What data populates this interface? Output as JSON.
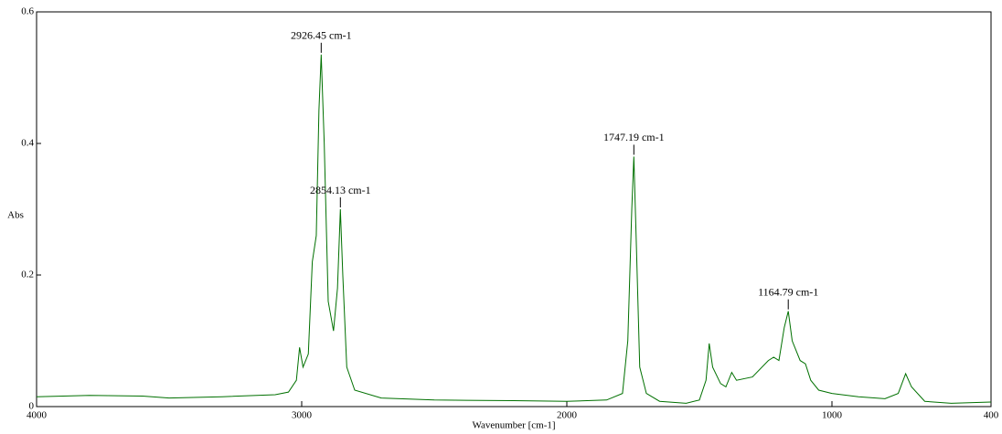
{
  "chart_data": {
    "type": "line",
    "x_label": "Wavenumber [cm-1]",
    "y_label": "Abs",
    "xlim": [
      4000,
      400
    ],
    "ylim": [
      0,
      0.6
    ],
    "xticks": [
      4000,
      3000,
      2000,
      1000,
      400
    ],
    "yticks": [
      0,
      0.2,
      0.4,
      0.6
    ],
    "x": [
      4000,
      3800,
      3600,
      3500,
      3300,
      3100,
      3050,
      3020,
      3008,
      2995,
      2975,
      2960,
      2945,
      2935,
      2926.45,
      2915,
      2900,
      2880,
      2865,
      2854.13,
      2845,
      2830,
      2800,
      2700,
      2500,
      2200,
      2000,
      1850,
      1790,
      1770,
      1755,
      1747.19,
      1738,
      1725,
      1700,
      1650,
      1550,
      1500,
      1475,
      1463,
      1450,
      1420,
      1400,
      1378,
      1360,
      1300,
      1240,
      1220,
      1200,
      1180,
      1164.79,
      1150,
      1120,
      1100,
      1080,
      1050,
      1000,
      900,
      800,
      750,
      722,
      700,
      650,
      550,
      400
    ],
    "series": [
      {
        "color": "#007000",
        "values": [
          0.015,
          0.017,
          0.016,
          0.013,
          0.015,
          0.018,
          0.022,
          0.04,
          0.09,
          0.06,
          0.08,
          0.22,
          0.26,
          0.45,
          0.535,
          0.4,
          0.16,
          0.115,
          0.18,
          0.3,
          0.2,
          0.06,
          0.025,
          0.013,
          0.01,
          0.009,
          0.008,
          0.01,
          0.02,
          0.1,
          0.3,
          0.38,
          0.25,
          0.06,
          0.02,
          0.008,
          0.005,
          0.01,
          0.04,
          0.096,
          0.06,
          0.035,
          0.03,
          0.052,
          0.04,
          0.045,
          0.07,
          0.075,
          0.07,
          0.12,
          0.145,
          0.1,
          0.07,
          0.065,
          0.04,
          0.025,
          0.02,
          0.015,
          0.012,
          0.02,
          0.05,
          0.03,
          0.008,
          0.005,
          0.007
        ]
      }
    ],
    "peaks": [
      {
        "label": "2926.45 cm-1",
        "x": 2926.45,
        "y": 0.535
      },
      {
        "label": "2854.13 cm-1",
        "x": 2854.13,
        "y": 0.3
      },
      {
        "label": "1747.19 cm-1",
        "x": 1747.19,
        "y": 0.38
      },
      {
        "label": "1164.79 cm-1",
        "x": 1164.79,
        "y": 0.145
      }
    ]
  }
}
